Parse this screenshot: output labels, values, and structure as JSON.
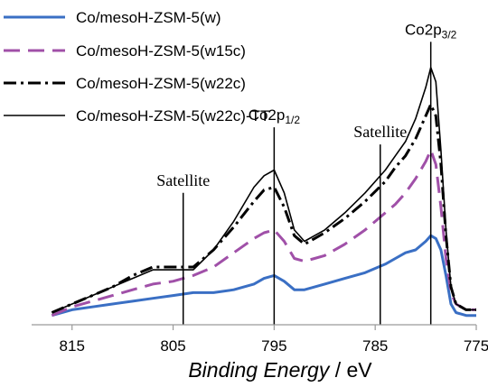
{
  "chart_data": {
    "type": "line",
    "title": "",
    "xlabel_main": "Binding Energy",
    "xlabel_unit": " / eV",
    "ylabel": "",
    "xlim": [
      819,
      775
    ],
    "ylim": [
      0,
      100
    ],
    "x_reversed": true,
    "grid": false,
    "legend_position": "top-left",
    "xticks": [
      815,
      805,
      795,
      785,
      775
    ],
    "series": [
      {
        "name": "Co/mesoH-ZSM-5(w)",
        "color": "#3a6fc4",
        "dash": "solid",
        "width": 3,
        "x": [
          817,
          815,
          813,
          811,
          809,
          807,
          805,
          803,
          801,
          799,
          797,
          796,
          795,
          794,
          793,
          792,
          791,
          790,
          788,
          786,
          784,
          783,
          782,
          781,
          780,
          779.5,
          779,
          778.5,
          778,
          777.5,
          777,
          776,
          775
        ],
        "y": [
          2,
          4,
          5,
          6,
          7,
          8,
          9,
          10,
          10,
          11,
          13,
          15,
          16,
          14,
          11,
          11,
          12,
          13,
          15,
          17,
          20,
          22,
          24,
          25,
          28,
          30,
          29,
          25,
          16,
          6,
          3,
          2,
          2
        ]
      },
      {
        "name": "Co/mesoH-ZSM-5(w15c)",
        "color": "#a050a8",
        "dash": "dashed",
        "width": 3,
        "x": [
          817,
          815,
          813,
          811,
          809,
          807,
          805,
          803,
          801,
          799,
          797,
          796,
          795,
          794,
          793,
          792,
          791,
          790,
          788,
          786,
          784,
          783,
          782,
          781,
          780,
          779.5,
          779,
          778.5,
          778,
          777.5,
          777,
          776,
          775
        ],
        "y": [
          2,
          5,
          7,
          9,
          11,
          13,
          14,
          16,
          19,
          24,
          29,
          31,
          32,
          28,
          22,
          21,
          22,
          23,
          27,
          32,
          38,
          41,
          45,
          50,
          56,
          60,
          55,
          40,
          22,
          10,
          6,
          4,
          4
        ]
      },
      {
        "name": "Co/mesoH-ZSM-5(w22c)",
        "color": "#000000",
        "dash": "dashdot",
        "width": 3,
        "x": [
          817,
          815,
          813,
          811,
          809,
          807,
          805,
          803,
          801,
          799,
          797,
          796,
          795,
          794,
          793,
          792,
          791,
          790,
          788,
          786,
          784,
          783,
          782,
          781,
          780,
          779.5,
          779,
          778.5,
          778,
          777.5,
          777,
          776,
          775
        ],
        "y": [
          3,
          6,
          9,
          12,
          16,
          19,
          19,
          19,
          25,
          33,
          42,
          46,
          47,
          40,
          30,
          27,
          29,
          31,
          36,
          42,
          49,
          54,
          58,
          64,
          72,
          76,
          72,
          55,
          30,
          12,
          6,
          4,
          4
        ]
      },
      {
        "name": "Co/mesoH-ZSM-5(w22c)-TT",
        "color": "#000000",
        "dash": "solid",
        "width": 1.6,
        "x": [
          817,
          815,
          813,
          811,
          809,
          807,
          805,
          803,
          801,
          799,
          797,
          796,
          795,
          794,
          793,
          792,
          791,
          790,
          788,
          786,
          784,
          783,
          782,
          781,
          780,
          779.5,
          779,
          778.5,
          778,
          777.5,
          777,
          776,
          775
        ],
        "y": [
          3,
          6,
          9,
          12,
          15,
          18,
          18,
          18,
          25,
          35,
          47,
          51,
          53,
          45,
          32,
          28,
          30,
          32,
          38,
          45,
          53,
          58,
          63,
          71,
          82,
          89,
          84,
          60,
          32,
          12,
          6,
          4,
          4
        ]
      }
    ],
    "annotations": [
      {
        "text": "Satellite",
        "x": 804,
        "line_top": 45,
        "style": "serif"
      },
      {
        "text_main": "Co2p",
        "text_sub": "1/2",
        "x": 795,
        "line_top": 68,
        "style": "sans"
      },
      {
        "text": "Satellite",
        "x": 784.5,
        "line_top": 62,
        "style": "serif"
      },
      {
        "text_main": "Co2p",
        "text_sub": "3/2",
        "x": 779.5,
        "line_top": 98,
        "style": "sans"
      }
    ]
  }
}
